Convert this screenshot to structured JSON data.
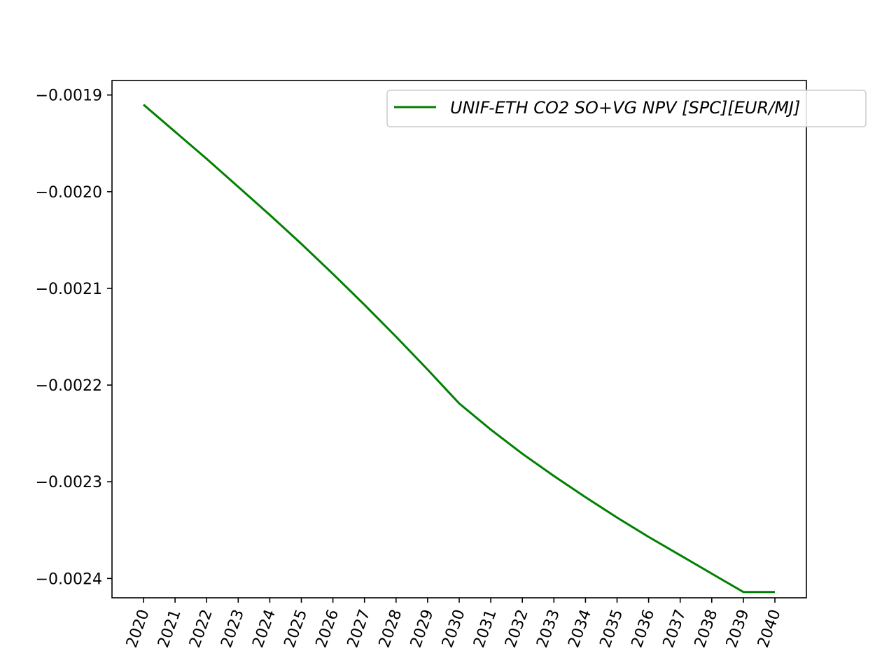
{
  "chart_data": {
    "type": "line",
    "title": "",
    "xlabel": "",
    "ylabel": "",
    "x": [
      "2020",
      "2021",
      "2022",
      "2023",
      "2024",
      "2025",
      "2026",
      "2027",
      "2028",
      "2029",
      "2030",
      "2031",
      "2032",
      "2033",
      "2034",
      "2035",
      "2036",
      "2037",
      "2038",
      "2039",
      "2040"
    ],
    "series": [
      {
        "name": "UNIF-ETH CO2 SO+VG NPV [SPC][EUR/MJ]",
        "color": "#008000",
        "values": [
          -0.00191,
          -0.001938,
          -0.001966,
          -0.001995,
          -0.002024,
          -0.002054,
          -0.002085,
          -0.002117,
          -0.00215,
          -0.002184,
          -0.002219,
          -0.002246,
          -0.002271,
          -0.002294,
          -0.002316,
          -0.002337,
          -0.002357,
          -0.002376,
          -0.002395,
          -0.002414,
          -0.002414
        ]
      }
    ],
    "yticks": [
      "−0.0019",
      "−0.0020",
      "−0.0021",
      "−0.0022",
      "−0.0023",
      "−0.0024"
    ],
    "ytick_values": [
      -0.0019,
      -0.002,
      -0.0021,
      -0.0022,
      -0.0023,
      -0.0024
    ],
    "ylim": [
      -0.00242,
      -0.001885
    ],
    "grid": false,
    "legend_position": "top-right"
  }
}
